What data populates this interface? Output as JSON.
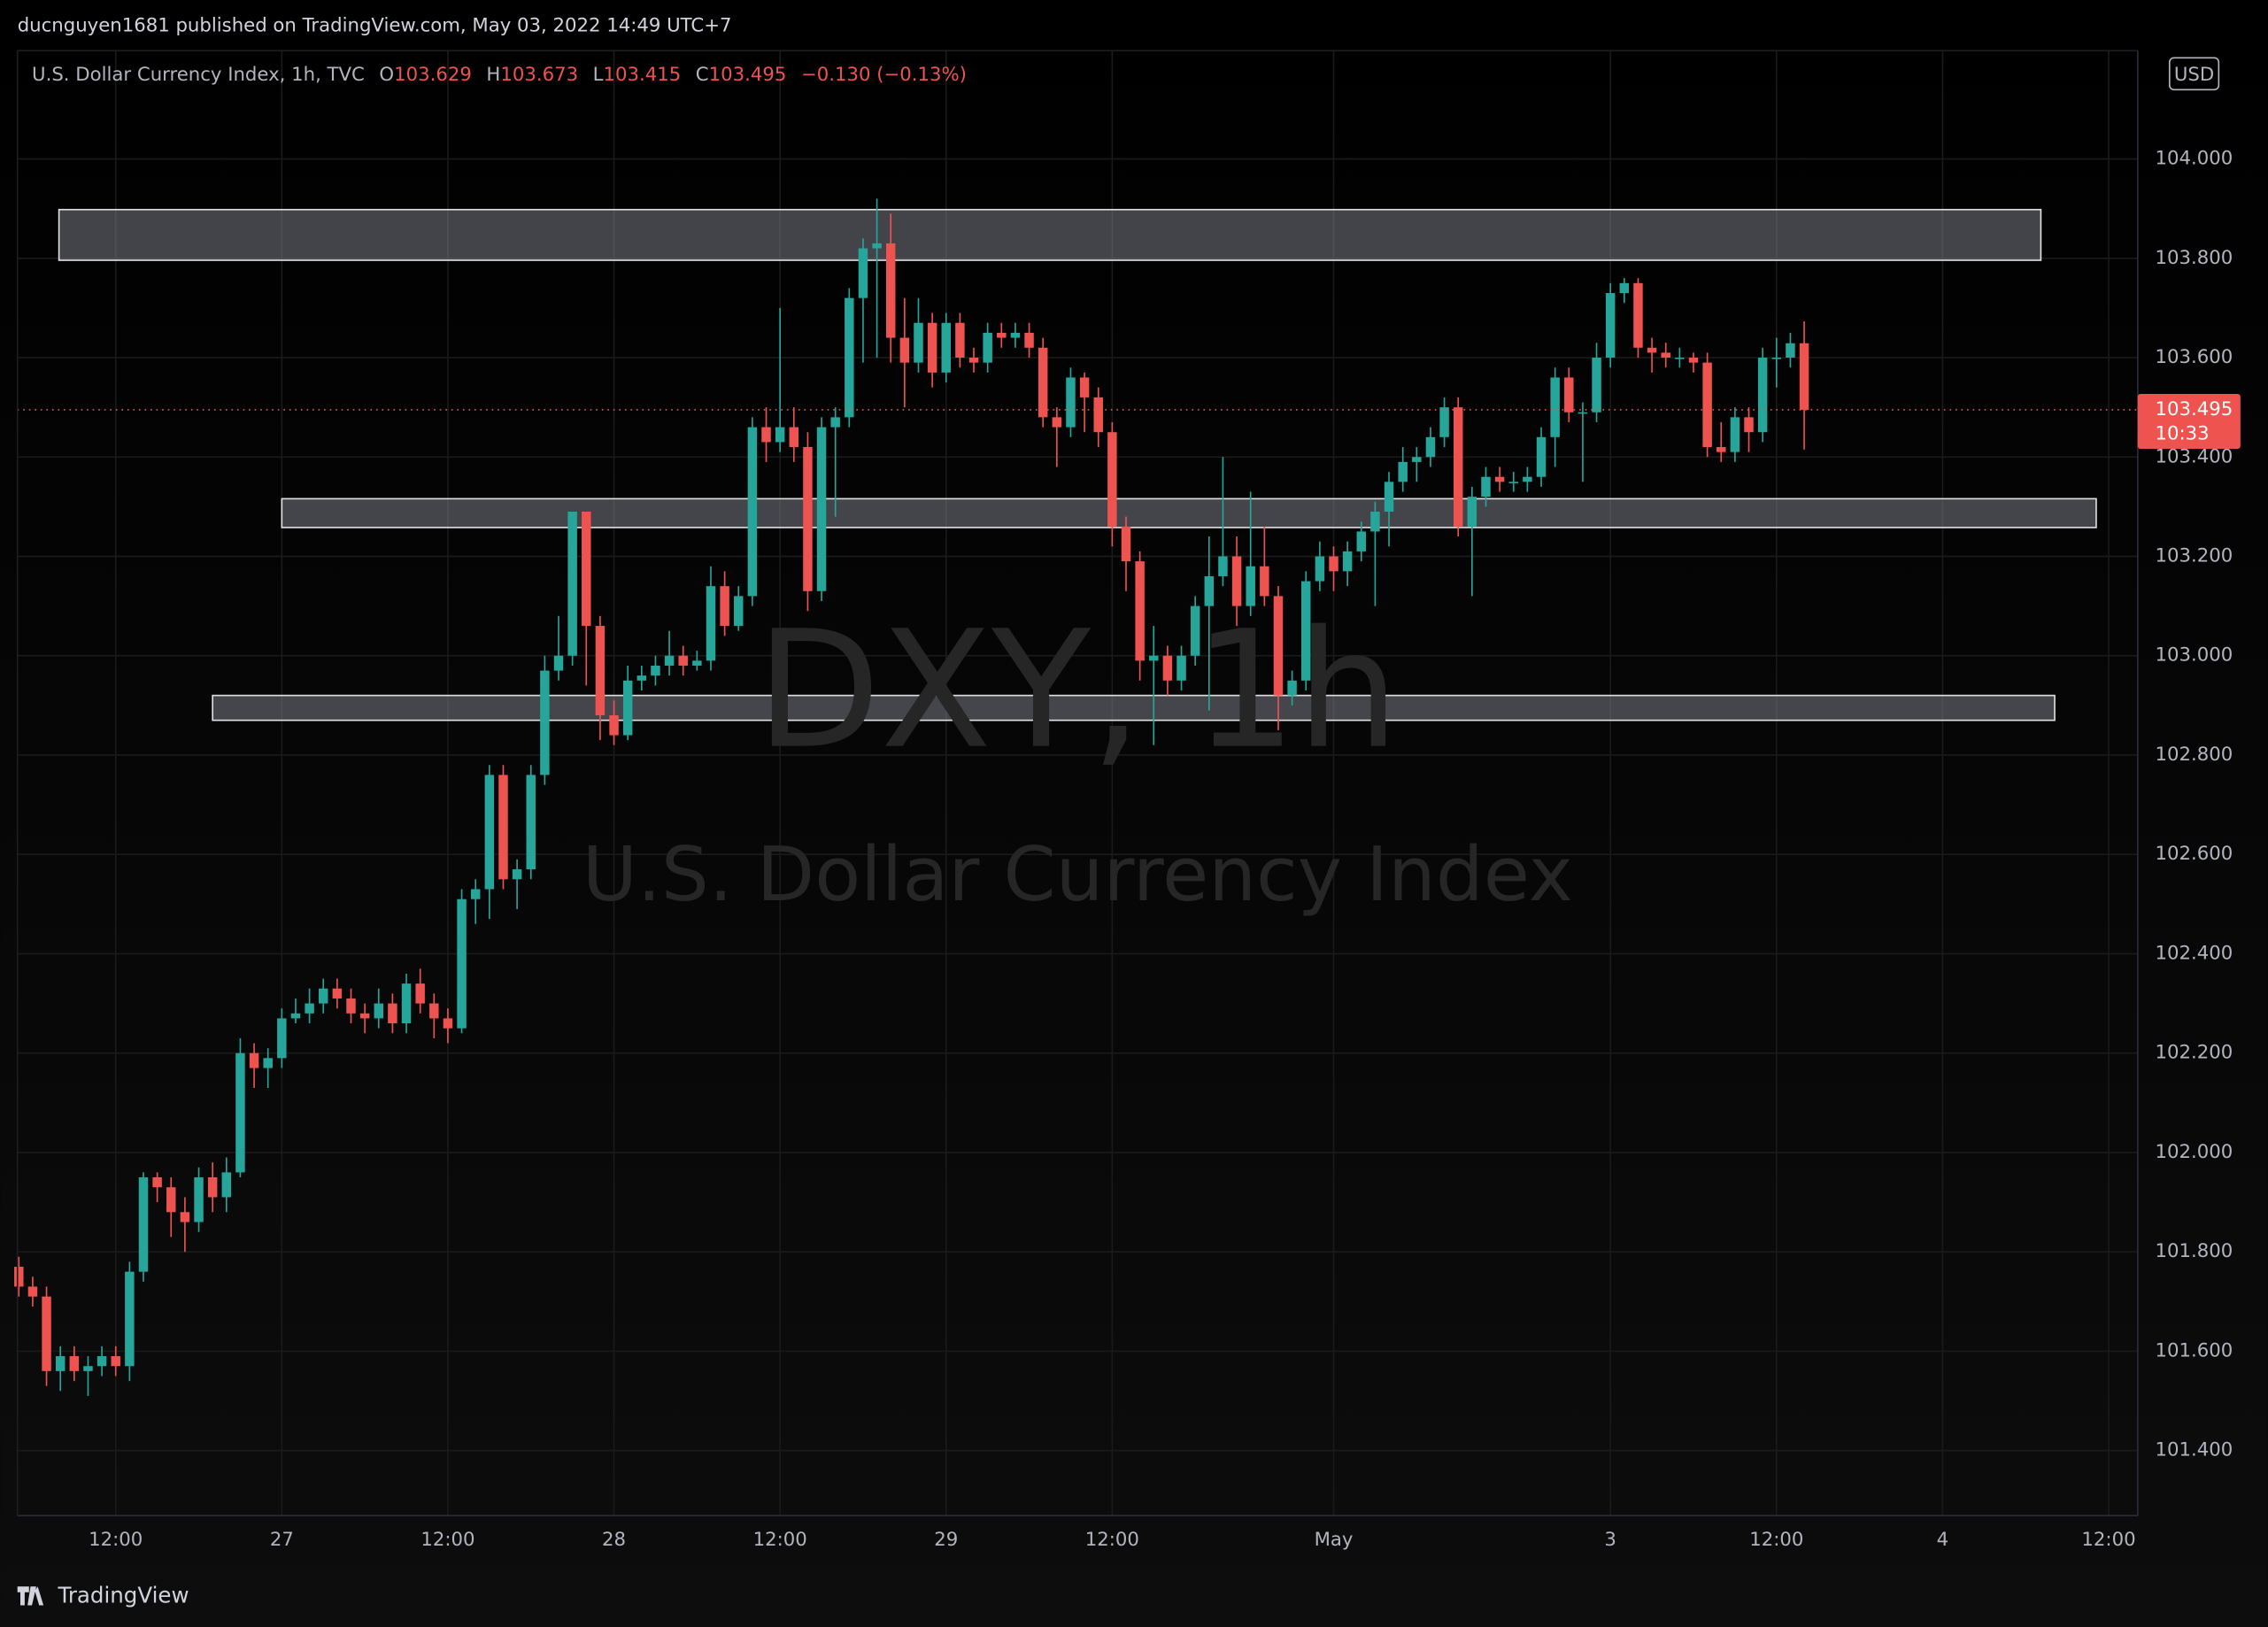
{
  "header": {
    "published": "ducnguyen1681 published on TradingView.com, May 03, 2022 14:49 UTC+7",
    "symbol": "U.S. Dollar Currency Index, 1h, TVC",
    "ohlc": [
      {
        "key": "O",
        "text": "103.629"
      },
      {
        "key": "H",
        "text": "103.673"
      },
      {
        "key": "L",
        "text": "103.415"
      },
      {
        "key": "C",
        "text": "103.495"
      }
    ],
    "change": "−0.130 (−0.13%)"
  },
  "watermark": {
    "ticker": "DXY, 1h",
    "name": "U.S. Dollar Currency Index"
  },
  "currency": "USD",
  "price_tag": {
    "price": "103.495",
    "countdown": "10:33"
  },
  "logo": "TradingView",
  "chart_data": {
    "type": "candlestick",
    "up_color": "#26a69a",
    "down_color": "#ef5350",
    "grid": true,
    "open": [
      101.77,
      101.73,
      101.71,
      101.56,
      101.59,
      101.56,
      101.57,
      101.59,
      101.57,
      101.76,
      101.95,
      101.93,
      101.88,
      101.86,
      101.95,
      101.91,
      101.96,
      102.2,
      102.17,
      102.19,
      102.27,
      102.28,
      102.3,
      102.33,
      102.31,
      102.28,
      102.27,
      102.3,
      102.26,
      102.34,
      102.3,
      102.27,
      102.25,
      102.51,
      102.53,
      102.76,
      102.55,
      102.57,
      102.76,
      102.97,
      103.0,
      103.29,
      103.06,
      102.88,
      102.84,
      102.95,
      102.96,
      102.98,
      103.0,
      102.98,
      102.99,
      103.14,
      103.06,
      103.12,
      103.46,
      103.43,
      103.46,
      103.42,
      103.13,
      103.46,
      103.48,
      103.72,
      103.82,
      103.83,
      103.64,
      103.59,
      103.67,
      103.57,
      103.67,
      103.6,
      103.59,
      103.65,
      103.64,
      103.65,
      103.62,
      103.48,
      103.46,
      103.56,
      103.52,
      103.45,
      103.26,
      103.19,
      102.99,
      103.0,
      102.95,
      103.0,
      103.1,
      103.16,
      103.2,
      103.1,
      103.18,
      103.12,
      102.92,
      102.95,
      103.15,
      103.2,
      103.17,
      103.21,
      103.25,
      103.29,
      103.35,
      103.39,
      103.4,
      103.44,
      103.5,
      103.26,
      103.32,
      103.36,
      103.35,
      103.35,
      103.36,
      103.44,
      103.56,
      103.49,
      103.49,
      103.6,
      103.73,
      103.75,
      103.62,
      103.61,
      103.6,
      103.6,
      103.59,
      103.42,
      103.41,
      103.48,
      103.45,
      103.6,
      103.6,
      103.629
    ],
    "high": [
      101.79,
      101.75,
      101.73,
      101.61,
      101.61,
      101.59,
      101.61,
      101.61,
      101.78,
      101.96,
      101.96,
      101.95,
      101.91,
      101.97,
      101.98,
      101.99,
      102.23,
      102.22,
      102.21,
      102.29,
      102.31,
      102.33,
      102.35,
      102.35,
      102.33,
      102.3,
      102.33,
      102.32,
      102.36,
      102.37,
      102.32,
      102.29,
      102.53,
      102.55,
      102.78,
      102.78,
      102.59,
      102.78,
      103.0,
      103.08,
      103.29,
      103.29,
      103.08,
      102.91,
      102.98,
      102.98,
      103.0,
      103.05,
      103.02,
      103.01,
      103.18,
      103.17,
      103.14,
      103.48,
      103.5,
      103.7,
      103.5,
      103.45,
      103.48,
      103.5,
      103.74,
      103.84,
      103.92,
      103.89,
      103.72,
      103.72,
      103.69,
      103.69,
      103.69,
      103.62,
      103.67,
      103.67,
      103.67,
      103.67,
      103.64,
      103.5,
      103.58,
      103.57,
      103.54,
      103.47,
      103.28,
      103.21,
      103.06,
      103.02,
      103.02,
      103.12,
      103.24,
      103.4,
      103.24,
      103.33,
      103.26,
      103.14,
      102.97,
      103.17,
      103.23,
      103.22,
      103.23,
      103.27,
      103.31,
      103.37,
      103.42,
      103.42,
      103.46,
      103.52,
      103.52,
      103.34,
      103.38,
      103.38,
      103.37,
      103.38,
      103.46,
      103.58,
      103.58,
      103.51,
      103.63,
      103.75,
      103.76,
      103.76,
      103.64,
      103.63,
      103.62,
      103.61,
      103.61,
      103.47,
      103.5,
      103.5,
      103.62,
      103.64,
      103.65,
      103.673
    ],
    "low": [
      101.71,
      101.69,
      101.53,
      101.52,
      101.54,
      101.51,
      101.55,
      101.55,
      101.54,
      101.74,
      101.9,
      101.83,
      101.8,
      101.84,
      101.88,
      101.88,
      101.95,
      102.13,
      102.13,
      102.17,
      102.26,
      102.26,
      102.28,
      102.29,
      102.26,
      102.24,
      102.25,
      102.24,
      102.24,
      102.28,
      102.23,
      102.22,
      102.24,
      102.46,
      102.47,
      102.53,
      102.49,
      102.55,
      102.74,
      102.95,
      102.98,
      102.94,
      102.83,
      102.82,
      102.83,
      102.93,
      102.94,
      102.96,
      102.96,
      102.97,
      102.97,
      103.04,
      103.05,
      103.1,
      103.39,
      103.41,
      103.39,
      103.09,
      103.11,
      103.28,
      103.46,
      103.59,
      103.6,
      103.59,
      103.5,
      103.57,
      103.54,
      103.55,
      103.58,
      103.57,
      103.57,
      103.62,
      103.62,
      103.6,
      103.46,
      103.38,
      103.44,
      103.45,
      103.42,
      103.22,
      103.13,
      102.95,
      102.82,
      102.92,
      102.93,
      102.98,
      102.89,
      103.14,
      103.06,
      103.08,
      103.1,
      102.85,
      102.9,
      102.93,
      103.13,
      103.13,
      103.14,
      103.19,
      103.1,
      103.22,
      103.33,
      103.35,
      103.38,
      103.42,
      103.24,
      103.12,
      103.3,
      103.33,
      103.33,
      103.33,
      103.34,
      103.38,
      103.47,
      103.35,
      103.47,
      103.58,
      103.71,
      103.6,
      103.57,
      103.58,
      103.58,
      103.57,
      103.4,
      103.39,
      103.39,
      103.41,
      103.43,
      103.54,
      103.58,
      103.415
    ],
    "close": [
      101.73,
      101.71,
      101.56,
      101.59,
      101.56,
      101.57,
      101.59,
      101.57,
      101.76,
      101.95,
      101.93,
      101.88,
      101.86,
      101.95,
      101.91,
      101.96,
      102.2,
      102.17,
      102.19,
      102.27,
      102.28,
      102.3,
      102.33,
      102.31,
      102.28,
      102.27,
      102.3,
      102.26,
      102.34,
      102.3,
      102.27,
      102.25,
      102.51,
      102.53,
      102.76,
      102.55,
      102.57,
      102.76,
      102.97,
      103.0,
      103.29,
      103.06,
      102.88,
      102.84,
      102.95,
      102.96,
      102.98,
      103.0,
      102.98,
      102.99,
      103.14,
      103.06,
      103.12,
      103.46,
      103.43,
      103.46,
      103.42,
      103.13,
      103.46,
      103.48,
      103.72,
      103.82,
      103.83,
      103.64,
      103.59,
      103.67,
      103.57,
      103.67,
      103.6,
      103.59,
      103.65,
      103.64,
      103.65,
      103.62,
      103.48,
      103.46,
      103.56,
      103.52,
      103.45,
      103.26,
      103.19,
      102.99,
      103.0,
      102.95,
      103.0,
      103.1,
      103.16,
      103.2,
      103.1,
      103.18,
      103.12,
      102.92,
      102.95,
      103.15,
      103.2,
      103.17,
      103.21,
      103.25,
      103.29,
      103.35,
      103.39,
      103.4,
      103.44,
      103.5,
      103.26,
      103.32,
      103.36,
      103.35,
      103.35,
      103.36,
      103.44,
      103.56,
      103.49,
      103.49,
      103.6,
      103.73,
      103.75,
      103.62,
      103.61,
      103.6,
      103.6,
      103.59,
      103.42,
      103.41,
      103.48,
      103.45,
      103.6,
      103.6,
      103.629,
      103.495
    ],
    "zones": [
      {
        "top": 103.898,
        "bottom": 103.796,
        "start": 2.9,
        "end": 146.1
      },
      {
        "top": 103.316,
        "bottom": 103.258,
        "start": 19.0,
        "end": 150.1
      },
      {
        "top": 102.92,
        "bottom": 102.87,
        "start": 14.0,
        "end": 147.1
      }
    ],
    "xlim": [
      -0.1,
      153.1
    ],
    "xticks": [
      {
        "value": 7,
        "label": "12:00"
      },
      {
        "value": 19,
        "label": "27"
      },
      {
        "value": 31,
        "label": "12:00"
      },
      {
        "value": 43,
        "label": "28"
      },
      {
        "value": 55,
        "label": "12:00"
      },
      {
        "value": 67,
        "label": "29"
      },
      {
        "value": 79,
        "label": "12:00"
      },
      {
        "value": 95,
        "label": "May"
      },
      {
        "value": 115,
        "label": "3"
      },
      {
        "value": 127,
        "label": "12:00"
      },
      {
        "value": 139,
        "label": "4"
      },
      {
        "value": 151,
        "label": "12:00"
      }
    ],
    "ylim": [
      101.269,
      104.218
    ],
    "yticks": [
      {
        "value": 101.4,
        "label": "101.400"
      },
      {
        "value": 101.6,
        "label": "101.600"
      },
      {
        "value": 101.8,
        "label": "101.800"
      },
      {
        "value": 102.0,
        "label": "102.000"
      },
      {
        "value": 102.2,
        "label": "102.200"
      },
      {
        "value": 102.4,
        "label": "102.400"
      },
      {
        "value": 102.6,
        "label": "102.600"
      },
      {
        "value": 102.8,
        "label": "102.800"
      },
      {
        "value": 103.0,
        "label": "103.000"
      },
      {
        "value": 103.2,
        "label": "103.200"
      },
      {
        "value": 103.4,
        "label": "103.400"
      },
      {
        "value": 103.6,
        "label": "103.600"
      },
      {
        "value": 103.8,
        "label": "103.800"
      },
      {
        "value": 104.0,
        "label": "104.000"
      }
    ]
  }
}
